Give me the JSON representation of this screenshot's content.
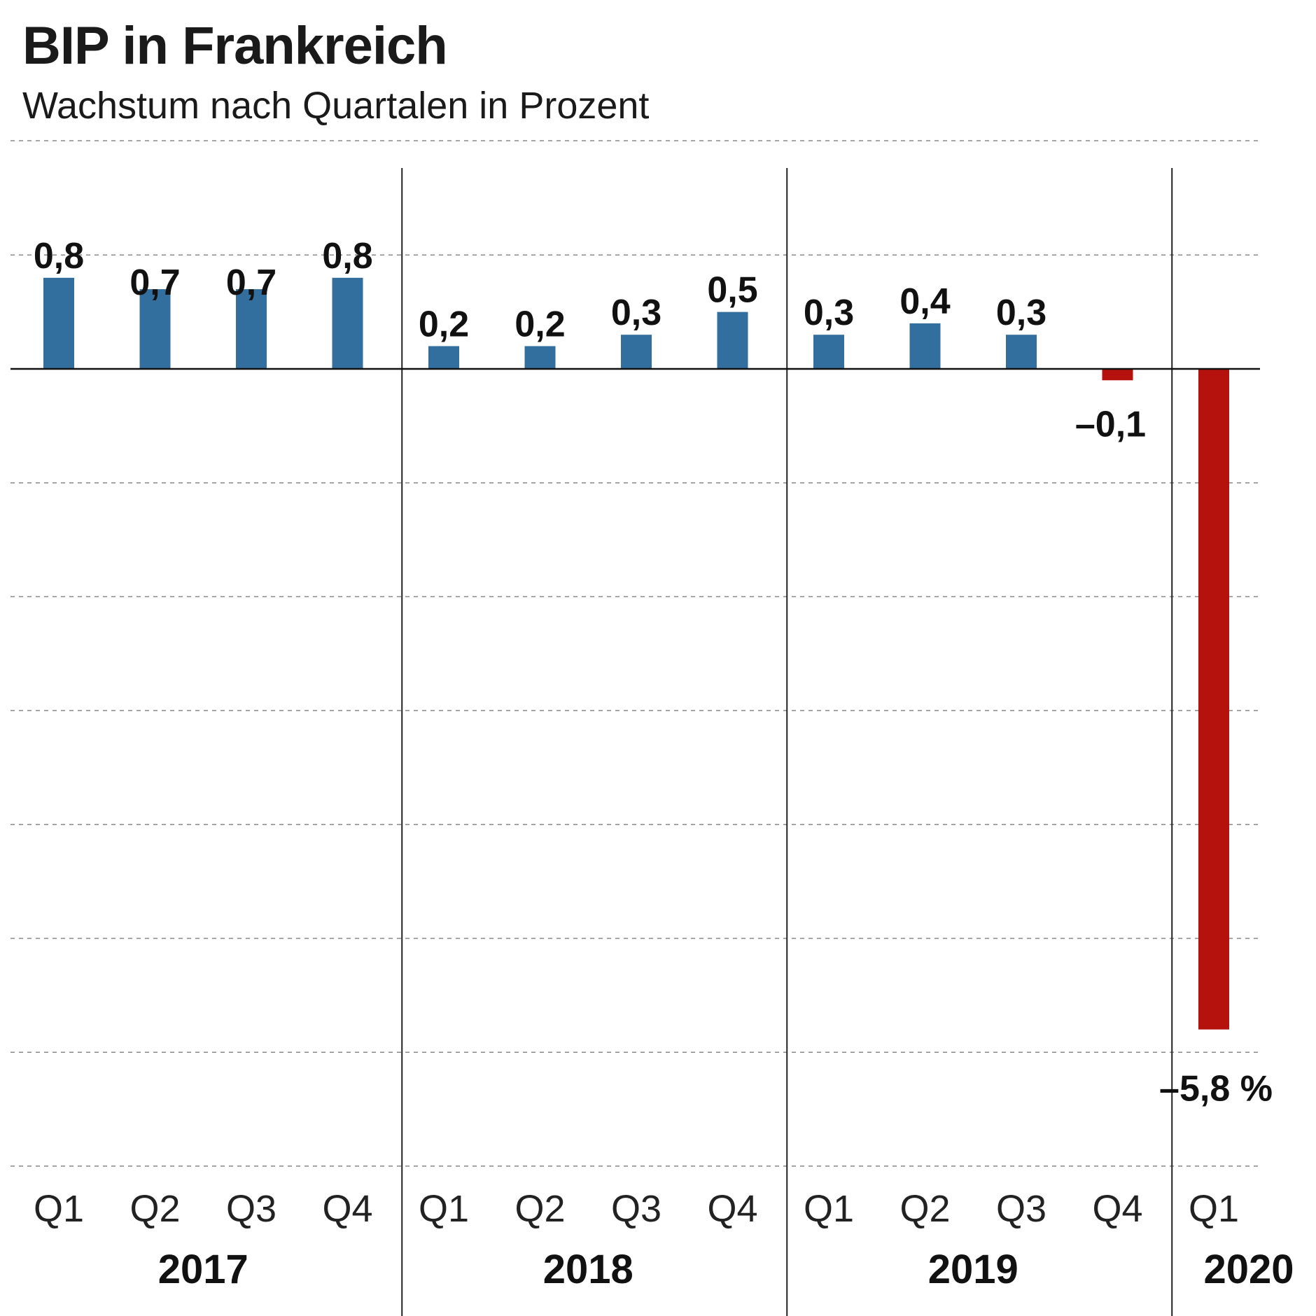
{
  "chart_data": {
    "type": "bar",
    "title": "BIP in Frankreich",
    "subtitle": "Wachstum nach Quartalen in Prozent",
    "categories": [
      "Q1",
      "Q2",
      "Q3",
      "Q4",
      "Q1",
      "Q2",
      "Q3",
      "Q4",
      "Q1",
      "Q2",
      "Q3",
      "Q4",
      "Q1"
    ],
    "years": [
      {
        "label": "2017",
        "quarters": 4
      },
      {
        "label": "2018",
        "quarters": 4
      },
      {
        "label": "2019",
        "quarters": 4
      },
      {
        "label": "2020",
        "quarters": 1
      }
    ],
    "values": [
      0.8,
      0.7,
      0.7,
      0.8,
      0.2,
      0.2,
      0.3,
      0.5,
      0.3,
      0.4,
      0.3,
      -0.1,
      -5.8
    ],
    "value_labels": [
      "0,8",
      "0,7",
      "0,7",
      "0,8",
      "0,2",
      "0,2",
      "0,3",
      "0,5",
      "0,3",
      "0,4",
      "0,3",
      "–0,1",
      "–5,8 %"
    ],
    "ylim": [
      -7,
      1
    ],
    "xlabel": "",
    "ylabel": "",
    "grid": true,
    "colors": {
      "positive": "#336f9e",
      "negative": "#b5120d",
      "text": "#111111",
      "grid": "#888888"
    }
  }
}
